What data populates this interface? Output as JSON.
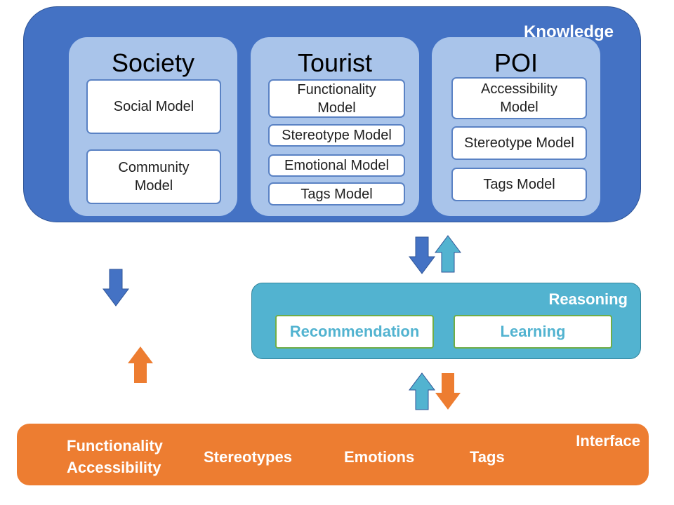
{
  "knowledge": {
    "title": "Knowledge",
    "panels": [
      {
        "title": "Society",
        "models": [
          "Social Model",
          "Community\nModel"
        ]
      },
      {
        "title": "Tourist",
        "models": [
          "Functionality\nModel",
          "Stereotype Model",
          "Emotional Model",
          "Tags Model"
        ]
      },
      {
        "title": "POI",
        "models": [
          "Accessibility\nModel",
          "Stereotype Model",
          "Tags Model"
        ]
      }
    ]
  },
  "reasoning": {
    "title": "Reasoning",
    "components": [
      "Recommendation",
      "Learning"
    ]
  },
  "interface": {
    "title": "Interface",
    "items": [
      "Functionality\nAccessibility",
      "Stereotypes",
      "Emotions",
      "Tags"
    ]
  },
  "colors": {
    "knowledge": "#4472c4",
    "panel": "#a9c4ea",
    "reasoning": "#52b3d0",
    "interface": "#ed7d31",
    "arrow_blue": "#4472c4",
    "arrow_teal": "#52b3d0",
    "arrow_orange": "#ed7d31"
  }
}
